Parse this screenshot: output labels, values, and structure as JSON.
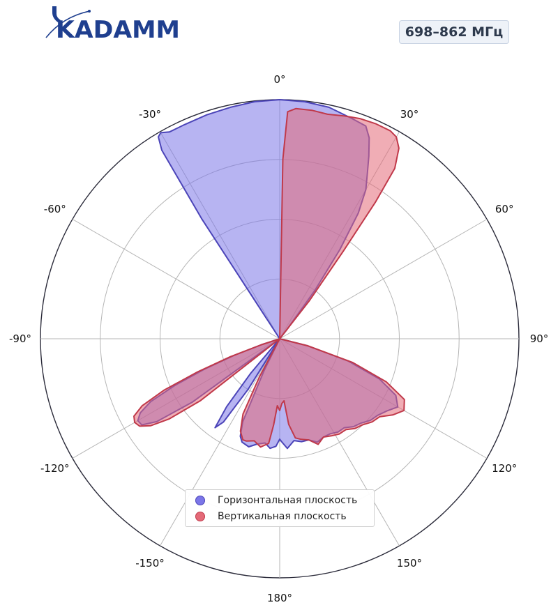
{
  "brand": {
    "logo_text": "KADAMM",
    "color": "#1f3f8f"
  },
  "band_label": "698–862 МГц",
  "chart_data": {
    "type": "polar-area",
    "angle_unit": "degrees",
    "angle_direction": "clockwise",
    "zero_location": "top",
    "angle_ticks": [
      0,
      30,
      60,
      90,
      120,
      150,
      180,
      -150,
      -120,
      -90,
      -60,
      -30
    ],
    "angle_tick_labels": [
      "0°",
      "30°",
      "60°",
      "90°",
      "120°",
      "150°",
      "180°",
      "-150°",
      "-120°",
      "-90°",
      "-60°",
      "-30°"
    ],
    "radial_range": [
      0,
      1
    ],
    "radial_gridlines": [
      0.25,
      0.5,
      0.75,
      1.0
    ],
    "radial_tick_labels_shown": false,
    "grid": true,
    "legend_position": "bottom-center",
    "series": [
      {
        "name": "Горизонтальная плоскость",
        "color": "#7b76e8",
        "edge_color": "#4b44b8",
        "points": [
          [
            -150,
            0.0
          ],
          [
            -148,
            0.25
          ],
          [
            -146,
            0.42
          ],
          [
            -144,
            0.46
          ],
          [
            -142,
            0.36
          ],
          [
            -140,
            0.19
          ],
          [
            -138,
            0.0
          ],
          [
            -34,
            0.0
          ],
          [
            -33,
            0.6
          ],
          [
            -32,
            0.93
          ],
          [
            -31,
            0.985
          ],
          [
            -30,
            0.995
          ],
          [
            -28,
            0.98
          ],
          [
            -24,
            0.98
          ],
          [
            -18,
            0.985
          ],
          [
            -12,
            0.99
          ],
          [
            -6,
            0.997
          ],
          [
            0,
            1.0
          ],
          [
            6,
            0.997
          ],
          [
            12,
            0.99
          ],
          [
            18,
            0.97
          ],
          [
            22,
            0.96
          ],
          [
            24,
            0.92
          ],
          [
            26,
            0.85
          ],
          [
            28,
            0.78
          ],
          [
            30,
            0.72
          ],
          [
            32,
            0.62
          ],
          [
            34,
            0.45
          ],
          [
            36,
            0.25
          ],
          [
            38,
            0.05
          ],
          [
            39,
            0.0
          ],
          [
            100,
            0.0
          ],
          [
            104,
            0.12
          ],
          [
            108,
            0.3
          ],
          [
            112,
            0.45
          ],
          [
            116,
            0.54
          ],
          [
            120,
            0.57
          ],
          [
            124,
            0.54
          ],
          [
            128,
            0.52
          ],
          [
            132,
            0.51
          ],
          [
            136,
            0.49
          ],
          [
            140,
            0.48
          ],
          [
            144,
            0.46
          ],
          [
            148,
            0.46
          ],
          [
            152,
            0.45
          ],
          [
            156,
            0.45
          ],
          [
            160,
            0.46
          ],
          [
            164,
            0.44
          ],
          [
            168,
            0.44
          ],
          [
            172,
            0.43
          ],
          [
            176,
            0.46
          ],
          [
            179,
            0.43
          ],
          [
            180,
            0.42
          ],
          [
            182,
            0.45
          ],
          [
            185,
            0.46
          ],
          [
            188,
            0.44
          ],
          [
            192,
            0.45
          ],
          [
            196,
            0.47
          ],
          [
            200,
            0.46
          ],
          [
            202,
            0.44
          ],
          [
            204,
            0.38
          ],
          [
            206,
            0.15
          ],
          [
            207,
            0.0
          ],
          [
            230,
            0.0
          ],
          [
            234,
            0.45
          ],
          [
            236,
            0.62
          ],
          [
            238,
            0.68
          ],
          [
            240,
            0.685
          ],
          [
            242,
            0.66
          ],
          [
            244,
            0.6
          ],
          [
            246,
            0.48
          ],
          [
            248,
            0.34
          ],
          [
            250,
            0.2
          ],
          [
            252,
            0.08
          ],
          [
            254,
            0.0
          ]
        ]
      },
      {
        "name": "Вертикальная плоскость",
        "color": "#e46a78",
        "edge_color": "#c0394a",
        "points": [
          [
            0,
            0.0
          ],
          [
            1,
            0.75
          ],
          [
            2,
            0.95
          ],
          [
            4,
            0.965
          ],
          [
            8,
            0.965
          ],
          [
            12,
            0.96
          ],
          [
            16,
            0.97
          ],
          [
            20,
            0.98
          ],
          [
            24,
            0.985
          ],
          [
            28,
            0.985
          ],
          [
            30,
            0.975
          ],
          [
            32,
            0.94
          ],
          [
            34,
            0.86
          ],
          [
            35,
            0.7
          ],
          [
            36,
            0.45
          ],
          [
            38,
            0.2
          ],
          [
            40,
            0.0
          ],
          [
            100,
            0.0
          ],
          [
            104,
            0.12
          ],
          [
            108,
            0.32
          ],
          [
            112,
            0.48
          ],
          [
            116,
            0.58
          ],
          [
            120,
            0.6
          ],
          [
            124,
            0.57
          ],
          [
            128,
            0.53
          ],
          [
            132,
            0.52
          ],
          [
            136,
            0.5
          ],
          [
            140,
            0.49
          ],
          [
            144,
            0.47
          ],
          [
            148,
            0.47
          ],
          [
            152,
            0.46
          ],
          [
            156,
            0.45
          ],
          [
            160,
            0.47
          ],
          [
            164,
            0.44
          ],
          [
            168,
            0.43
          ],
          [
            171,
            0.42
          ],
          [
            174,
            0.36
          ],
          [
            176,
            0.26
          ],
          [
            178,
            0.27
          ],
          [
            180,
            0.3
          ],
          [
            182,
            0.28
          ],
          [
            184,
            0.36
          ],
          [
            186,
            0.44
          ],
          [
            190,
            0.46
          ],
          [
            194,
            0.44
          ],
          [
            198,
            0.45
          ],
          [
            200,
            0.45
          ],
          [
            203,
            0.42
          ],
          [
            206,
            0.35
          ],
          [
            208,
            0.18
          ],
          [
            210,
            0.0
          ],
          [
            228,
            0.0
          ],
          [
            232,
            0.42
          ],
          [
            234,
            0.57
          ],
          [
            236,
            0.65
          ],
          [
            238,
            0.69
          ],
          [
            240,
            0.7
          ],
          [
            242,
            0.69
          ],
          [
            244,
            0.64
          ],
          [
            246,
            0.53
          ],
          [
            248,
            0.37
          ],
          [
            250,
            0.22
          ],
          [
            252,
            0.08
          ],
          [
            254,
            0.0
          ]
        ]
      }
    ]
  }
}
